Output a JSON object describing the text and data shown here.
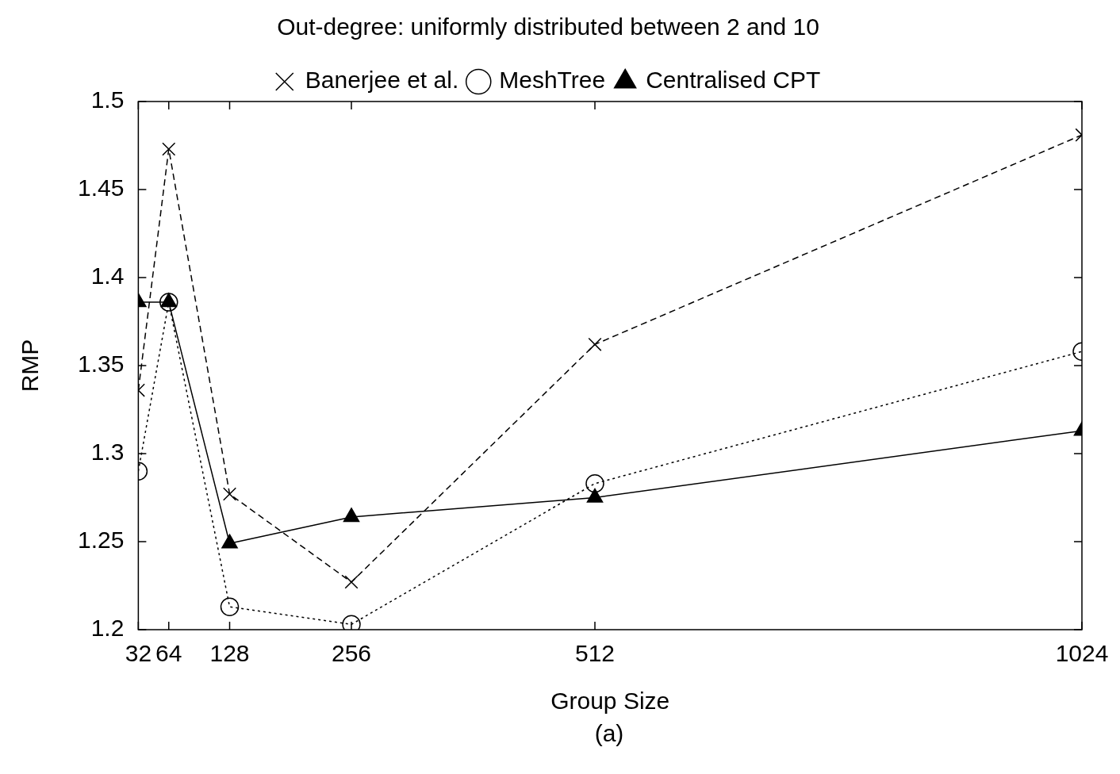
{
  "chart_data": {
    "type": "line",
    "title": "Out-degree: uniformly distributed between 2 and 10",
    "xlabel": "Group Size",
    "ylabel": "RMP",
    "annotations": [
      "(a)"
    ],
    "x": [
      32,
      64,
      128,
      256,
      512,
      1024
    ],
    "xlim": [
      32,
      1024
    ],
    "xticks": [
      32,
      64,
      128,
      256,
      512,
      1024
    ],
    "ylim": [
      1.2,
      1.5
    ],
    "yticks": [
      1.2,
      1.25,
      1.3,
      1.35,
      1.4,
      1.45,
      1.5
    ],
    "grid": false,
    "legend": "top left",
    "series": [
      {
        "name": "Banerjee et al.",
        "color": "#000000",
        "marker": "cross",
        "line_style": "dashed",
        "values": [
          1.336,
          1.473,
          1.277,
          1.227,
          1.362,
          1.481
        ]
      },
      {
        "name": "MeshTree",
        "color": "#000000",
        "marker": "circle",
        "line_style": "dotted",
        "values": [
          1.29,
          1.386,
          1.213,
          1.203,
          1.283,
          1.358
        ]
      },
      {
        "name": "Centralised CPT",
        "color": "#000000",
        "marker": "triangle",
        "line_style": "solid",
        "values": [
          1.386,
          1.386,
          1.249,
          1.264,
          1.275,
          1.313
        ]
      }
    ]
  }
}
